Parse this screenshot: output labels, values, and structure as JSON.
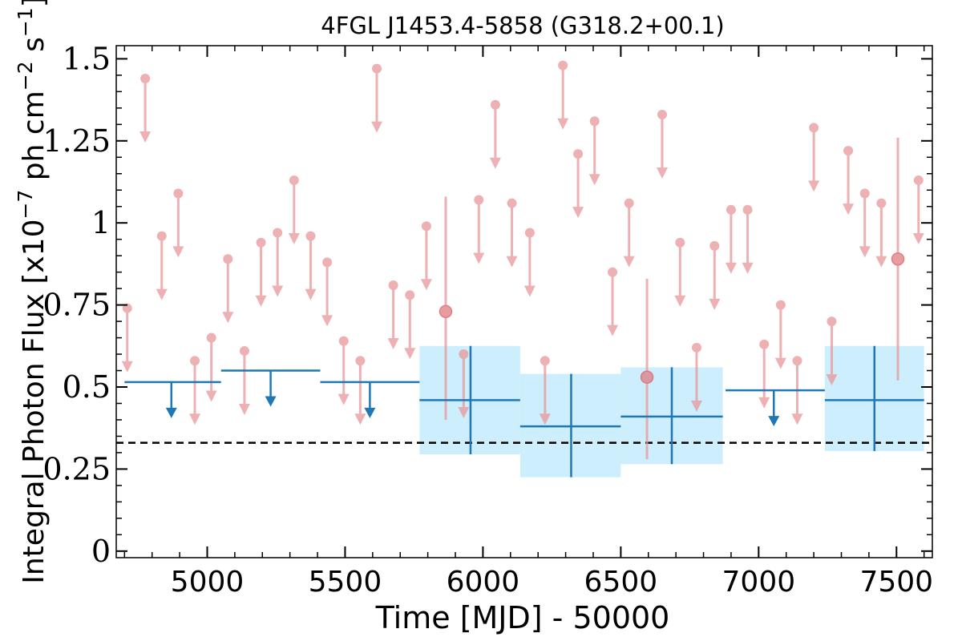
{
  "chart_data": {
    "type": "scatter",
    "title": "4FGL J1453.4-5858 (G318.2+00.1)",
    "xlabel": "Time [MJD] - 50000",
    "ylabel": "Integral Photon Flux [x10^{-7} ph cm^{-2} s^{-1}]",
    "ylabel_parts": {
      "base": "Integral Photon Flux [x10",
      "exp1": "−7",
      "mid": " ph cm",
      "exp2": "−2",
      "mid2": " s",
      "exp3": "−1",
      "end": "]"
    },
    "xlim": [
      4670,
      7630
    ],
    "ylim": [
      -0.02,
      1.54
    ],
    "xticks": [
      5000,
      5500,
      6000,
      6500,
      7000,
      7500
    ],
    "yticks": [
      0,
      0.25,
      0.5,
      0.75,
      1,
      1.25,
      1.5
    ],
    "ytick_labels": [
      "0",
      "0.25",
      "0.5",
      "0.75",
      "1",
      "1.25",
      "1.5"
    ],
    "reference_line": {
      "y": 0.33,
      "style": "dashed",
      "color": "#000000"
    },
    "series": [
      {
        "kind": "fine_upper_limits",
        "color": "#e8969a",
        "points": [
          [
            4710,
            0.74
          ],
          [
            4775,
            1.44
          ],
          [
            4835,
            0.96
          ],
          [
            4895,
            1.09
          ],
          [
            4955,
            0.58
          ],
          [
            5015,
            0.65
          ],
          [
            5075,
            0.89
          ],
          [
            5135,
            0.61
          ],
          [
            5195,
            0.94
          ],
          [
            5255,
            0.97
          ],
          [
            5315,
            1.13
          ],
          [
            5375,
            0.96
          ],
          [
            5435,
            0.88
          ],
          [
            5495,
            0.64
          ],
          [
            5555,
            0.58
          ],
          [
            5615,
            1.47
          ],
          [
            5675,
            0.81
          ],
          [
            5735,
            0.78
          ],
          [
            5795,
            0.99
          ],
          [
            5930,
            0.6
          ],
          [
            5985,
            1.07
          ],
          [
            6045,
            1.36
          ],
          [
            6105,
            1.06
          ],
          [
            6170,
            0.97
          ],
          [
            6225,
            0.58
          ],
          [
            6290,
            1.48
          ],
          [
            6345,
            1.21
          ],
          [
            6405,
            1.31
          ],
          [
            6470,
            0.85
          ],
          [
            6530,
            1.06
          ],
          [
            6650,
            1.33
          ],
          [
            6715,
            0.94
          ],
          [
            6775,
            0.62
          ],
          [
            6840,
            0.93
          ],
          [
            6900,
            1.04
          ],
          [
            6960,
            1.04
          ],
          [
            7020,
            0.63
          ],
          [
            7080,
            0.75
          ],
          [
            7140,
            0.58
          ],
          [
            7200,
            1.29
          ],
          [
            7265,
            0.7
          ],
          [
            7325,
            1.22
          ],
          [
            7385,
            1.09
          ],
          [
            7445,
            1.06
          ],
          [
            7580,
            1.13
          ]
        ]
      },
      {
        "kind": "fine_detections",
        "color": "#d9545a",
        "points": [
          {
            "x": 5865,
            "y": 0.73,
            "lo": 0.4,
            "hi": 1.08
          },
          {
            "x": 6595,
            "y": 0.53,
            "lo": 0.28,
            "hi": 0.83
          },
          {
            "x": 7505,
            "y": 0.89,
            "lo": 0.52,
            "hi": 1.26
          }
        ]
      },
      {
        "kind": "coarse_upper_limits",
        "color": "#1f77b4",
        "bins": [
          {
            "x0": 4700,
            "x1": 5050,
            "y": 0.515,
            "arrow_x": 4870
          },
          {
            "x0": 5050,
            "x1": 5410,
            "y": 0.55,
            "arrow_x": 5230
          },
          {
            "x0": 5410,
            "x1": 5770,
            "y": 0.515,
            "arrow_x": 5590
          },
          {
            "x0": 6880,
            "x1": 7240,
            "y": 0.49,
            "arrow_x": 7055
          }
        ]
      },
      {
        "kind": "coarse_detections",
        "color": "#1f77b4",
        "band_color": "#cdeefc",
        "bins": [
          {
            "x0": 5770,
            "x1": 6135,
            "y": 0.46,
            "lo": 0.295,
            "hi": 0.625,
            "xc": 5955
          },
          {
            "x0": 6135,
            "x1": 6500,
            "y": 0.38,
            "lo": 0.225,
            "hi": 0.54,
            "xc": 6320
          },
          {
            "x0": 6500,
            "x1": 6870,
            "y": 0.41,
            "lo": 0.265,
            "hi": 0.56,
            "xc": 6685
          },
          {
            "x0": 7240,
            "x1": 7600,
            "y": 0.46,
            "lo": 0.305,
            "hi": 0.625,
            "xc": 7420
          }
        ]
      }
    ]
  }
}
